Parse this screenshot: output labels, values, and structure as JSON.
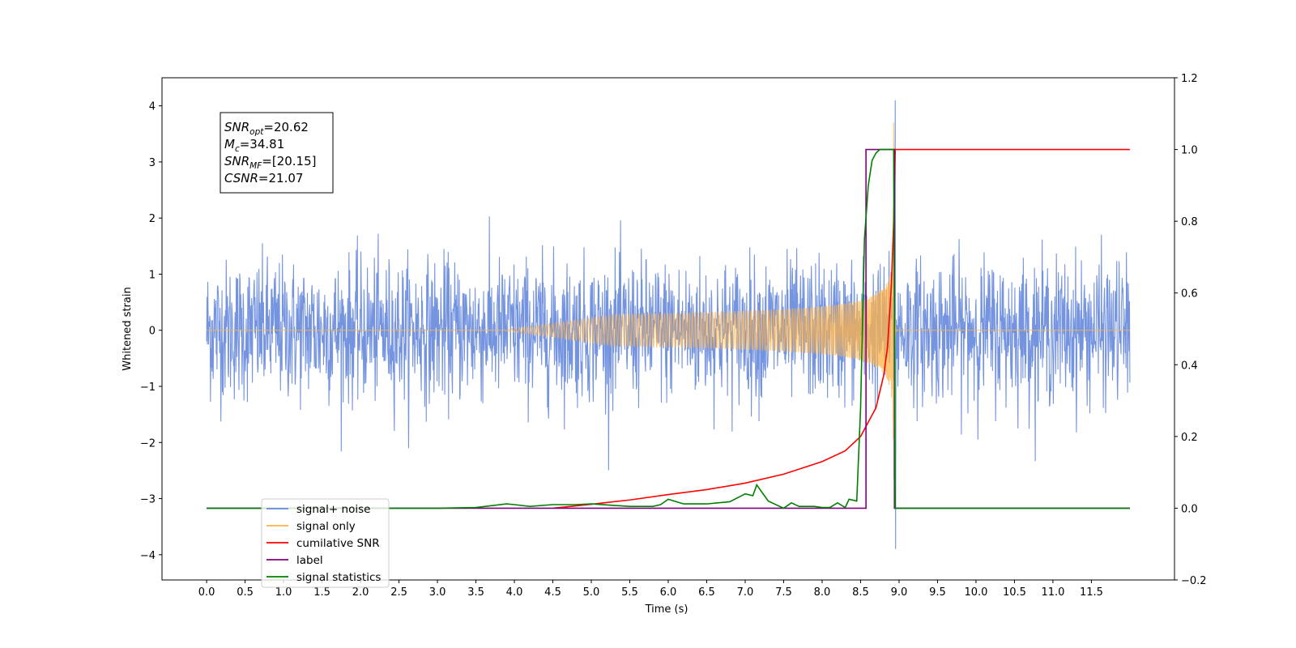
{
  "chart_data": {
    "type": "line",
    "xlabel": "Time (s)",
    "ylabel": "Whitened strain",
    "xlim": [
      -0.58,
      12.58
    ],
    "ylim": [
      -4.45,
      4.5
    ],
    "y2lim": [
      -0.2,
      1.2
    ],
    "x_ticks": [
      "0.0",
      "0.5",
      "1.0",
      "1.5",
      "2.0",
      "2.5",
      "3.0",
      "3.5",
      "4.0",
      "4.5",
      "5.0",
      "5.5",
      "6.0",
      "6.5",
      "7.0",
      "7.5",
      "8.0",
      "8.5",
      "9.0",
      "9.5",
      "10.0",
      "10.5",
      "11.0",
      "11.5"
    ],
    "y_ticks": [
      "4",
      "3",
      "2",
      "1",
      "0",
      "−1",
      "−2",
      "−3",
      "−4"
    ],
    "y2_ticks": [
      "1.2",
      "1.0",
      "0.8",
      "0.6",
      "0.4",
      "0.2",
      "0.0",
      "−0.2"
    ],
    "annotation": [
      {
        "main": "SNR",
        "sub": "opt",
        "rest": "=20.62"
      },
      {
        "main": "M",
        "sub": "c",
        "rest": "=34.81"
      },
      {
        "main": "SNR",
        "sub": "MF",
        "rest": "=[20.15]"
      },
      {
        "main": "CSNR",
        "sub": "",
        "rest": "=21.07"
      }
    ],
    "legend_position": "lower-left",
    "legend": [
      {
        "label": "signal+ noise",
        "color": "#6688dd"
      },
      {
        "label": "signal only",
        "color": "#ffb347"
      },
      {
        "label": "cumilative SNR",
        "color": "#ff0000"
      },
      {
        "label": "label",
        "color": "#800080"
      },
      {
        "label": "signal statistics",
        "color": "#008000"
      }
    ],
    "series": [
      {
        "name": "signal+ noise",
        "axis": "left",
        "color": "#6688dd",
        "description": "whitened noise, roughly ±2 amplitude over 0–12 s, with peak 4.1 and min −3.9 near 8.95 s",
        "x_range": [
          0.0,
          12.0
        ],
        "noise_envelope": [
          -2.8,
          2.6
        ],
        "peak": [
          8.95,
          4.1
        ],
        "trough": [
          8.95,
          -3.9
        ]
      },
      {
        "name": "signal only",
        "axis": "left",
        "color": "#ffb347",
        "description": "chirp signal, zero until ~4 s, amplitude growing to ~3.7 at 8.93 s then ringdown",
        "x_range": [
          0.0,
          12.0
        ],
        "peak": [
          8.93,
          3.7
        ],
        "merger_time": 8.93
      },
      {
        "name": "cumilative SNR",
        "axis": "right",
        "x": [
          4.5,
          5.0,
          5.5,
          6.0,
          6.5,
          7.0,
          7.5,
          8.0,
          8.3,
          8.5,
          8.7,
          8.8,
          8.85,
          8.9,
          8.93,
          8.95,
          12.0
        ],
        "y": [
          0.0,
          0.011,
          0.023,
          0.038,
          0.052,
          0.07,
          0.095,
          0.13,
          0.16,
          0.2,
          0.28,
          0.37,
          0.45,
          0.62,
          0.8,
          1.0,
          1.0
        ]
      },
      {
        "name": "label",
        "axis": "right",
        "x": [
          0.0,
          8.57,
          8.57,
          8.94,
          8.94,
          12.0
        ],
        "y": [
          0.0,
          0.0,
          1.0,
          1.0,
          0.0,
          0.0
        ]
      },
      {
        "name": "signal statistics",
        "axis": "right",
        "x": [
          0.0,
          2.0,
          3.0,
          3.5,
          3.9,
          4.0,
          4.2,
          4.5,
          4.8,
          5.0,
          5.5,
          5.8,
          5.9,
          6.0,
          6.2,
          6.5,
          6.8,
          7.0,
          7.1,
          7.15,
          7.3,
          7.5,
          7.6,
          7.7,
          7.9,
          8.0,
          8.1,
          8.2,
          8.3,
          8.35,
          8.45,
          8.5,
          8.55,
          8.6,
          8.65,
          8.7,
          8.75,
          8.8,
          8.85,
          8.9,
          8.93,
          8.95,
          9.0,
          9.5,
          12.0
        ],
        "y": [
          0.0,
          0.0,
          0.0,
          0.002,
          0.012,
          0.01,
          0.005,
          0.01,
          0.01,
          0.012,
          0.005,
          0.005,
          0.01,
          0.025,
          0.012,
          0.012,
          0.018,
          0.04,
          0.035,
          0.065,
          0.02,
          0.0,
          0.015,
          0.005,
          0.005,
          0.002,
          0.002,
          0.015,
          0.002,
          0.025,
          0.02,
          0.28,
          0.75,
          0.9,
          0.97,
          0.99,
          1.0,
          1.0,
          1.0,
          1.0,
          1.0,
          0.0,
          0.0,
          0.0,
          0.0
        ]
      }
    ]
  }
}
